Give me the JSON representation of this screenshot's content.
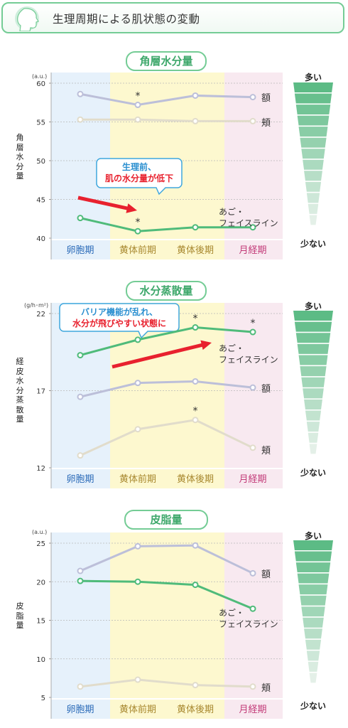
{
  "header": {
    "title": "生理周期による肌状態の変動"
  },
  "phases": [
    "卵胞期",
    "黄体前期",
    "黄体後期",
    "月経期"
  ],
  "phase_colors": [
    "#e6f1fb",
    "#fdf8cf",
    "#fdf8cf",
    "#f8e9f0"
  ],
  "phase_label_colors": [
    "#2a6ab8",
    "#a8882f",
    "#a8882f",
    "#c23a78"
  ],
  "colors": {
    "forehead": "#bcbfd9",
    "jaw": "#4fbb7a",
    "cheek": "#e1dccb",
    "arrow": "#e8212e",
    "accent": "#3ea86b"
  },
  "scale": {
    "top": "多い",
    "bottom": "少ない"
  },
  "chart_data": [
    {
      "type": "line",
      "title": "角層水分量",
      "ylabel": "角層水分量",
      "unit": "(a.u.)",
      "ylim": [
        40,
        60
      ],
      "yticks": [
        40,
        45,
        50,
        55,
        60
      ],
      "categories": [
        "卵胞期",
        "黄体前期",
        "黄体後期",
        "月経期"
      ],
      "series": [
        {
          "name": "額",
          "key": "forehead",
          "values": [
            58.6,
            57.2,
            58.4,
            58.2
          ],
          "stars": [
            1
          ]
        },
        {
          "name": "頬",
          "key": "cheek",
          "values": [
            55.3,
            55.3,
            55.1,
            55.1
          ],
          "stars": []
        },
        {
          "name": "あご・フェイスライン",
          "key": "jaw",
          "values": [
            42.6,
            40.9,
            41.4,
            41.4
          ],
          "stars": [
            1
          ]
        }
      ],
      "annotation": {
        "line1": "生理前、",
        "line2": "肌の水分量が低下"
      }
    },
    {
      "type": "line",
      "title": "水分蒸散量",
      "ylabel": "経皮水分蒸散量",
      "unit": "(g/h･m²)",
      "ylim": [
        12,
        22
      ],
      "yticks": [
        12,
        17,
        22
      ],
      "categories": [
        "卵胞期",
        "黄体前期",
        "黄体後期",
        "月経期"
      ],
      "series": [
        {
          "name": "あご・フェイスライン",
          "key": "jaw",
          "values": [
            19.3,
            20.3,
            21.1,
            20.8
          ],
          "stars": [
            2,
            3
          ]
        },
        {
          "name": "額",
          "key": "forehead",
          "values": [
            16.6,
            17.5,
            17.6,
            17.2
          ],
          "stars": []
        },
        {
          "name": "頬",
          "key": "cheek",
          "values": [
            12.8,
            14.5,
            15.1,
            13.3
          ],
          "stars": [
            2
          ]
        }
      ],
      "annotation": {
        "line1": "バリア機能が乱れ、",
        "line2": "水分が飛びやすい状態に"
      }
    },
    {
      "type": "line",
      "title": "皮脂量",
      "ylabel": "皮脂量",
      "unit": "(a.u.)",
      "ylim": [
        5,
        25
      ],
      "yticks": [
        5,
        10,
        15,
        20,
        25
      ],
      "categories": [
        "卵胞期",
        "黄体前期",
        "黄体後期",
        "月経期"
      ],
      "series": [
        {
          "name": "額",
          "key": "forehead",
          "values": [
            21.4,
            24.6,
            24.7,
            21.1
          ],
          "stars": []
        },
        {
          "name": "あご・フェイスライン",
          "key": "jaw",
          "values": [
            20.1,
            20.0,
            19.6,
            16.5
          ],
          "stars": []
        },
        {
          "name": "頬",
          "key": "cheek",
          "values": [
            6.4,
            7.3,
            6.6,
            6.4
          ],
          "stars": []
        }
      ]
    }
  ]
}
